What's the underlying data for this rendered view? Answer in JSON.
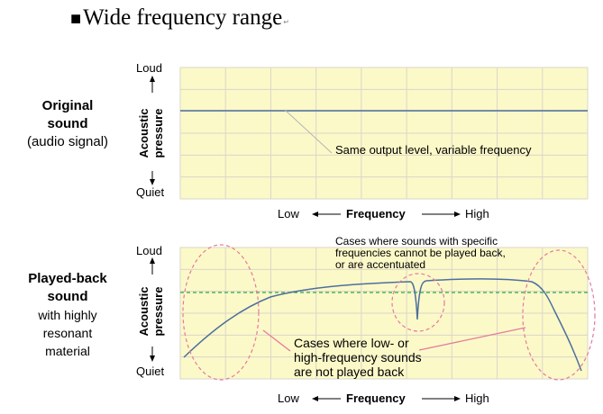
{
  "heading": {
    "bullet": "■",
    "title": "Wide frequency range",
    "return_mark": "↵"
  },
  "panel_top": {
    "label_line1": "Original",
    "label_line2": "sound",
    "label_line3": "(audio signal)",
    "y_top": "Loud",
    "y_bottom": "Quiet",
    "y_axis_line1": "Acoustic",
    "y_axis_line2": "pressure",
    "x_low": "Low",
    "x_title": "Frequency",
    "x_high": "High",
    "annotation": "Same output level, variable frequency"
  },
  "panel_bottom": {
    "label_line1": "Played-back",
    "label_line2": "sound",
    "label_line3": "with highly",
    "label_line4": "resonant",
    "label_line5": "material",
    "y_top": "Loud",
    "y_bottom": "Quiet",
    "y_axis_line1": "Acoustic",
    "y_axis_line2": "pressure",
    "x_low": "Low",
    "x_title": "Frequency",
    "x_high": "High",
    "annotation_top_line1": "Cases where sounds with specific",
    "annotation_top_line2": "frequencies cannot be played back,",
    "annotation_top_line3": "or are accentuated",
    "annotation_bottom_line1": "Cases where low- or",
    "annotation_bottom_line2": "high-frequency sounds",
    "annotation_bottom_line3": "are not played back"
  },
  "colors": {
    "plot_bg": "#fcf9c8",
    "grid": "#d9d6c8",
    "signal_line": "#4e6f9e",
    "dashed_ref": "#2aa84a",
    "ellipse": "#e47a9e",
    "leader_gray": "#b5b5b5",
    "leader_pink": "#e47a9e"
  }
}
